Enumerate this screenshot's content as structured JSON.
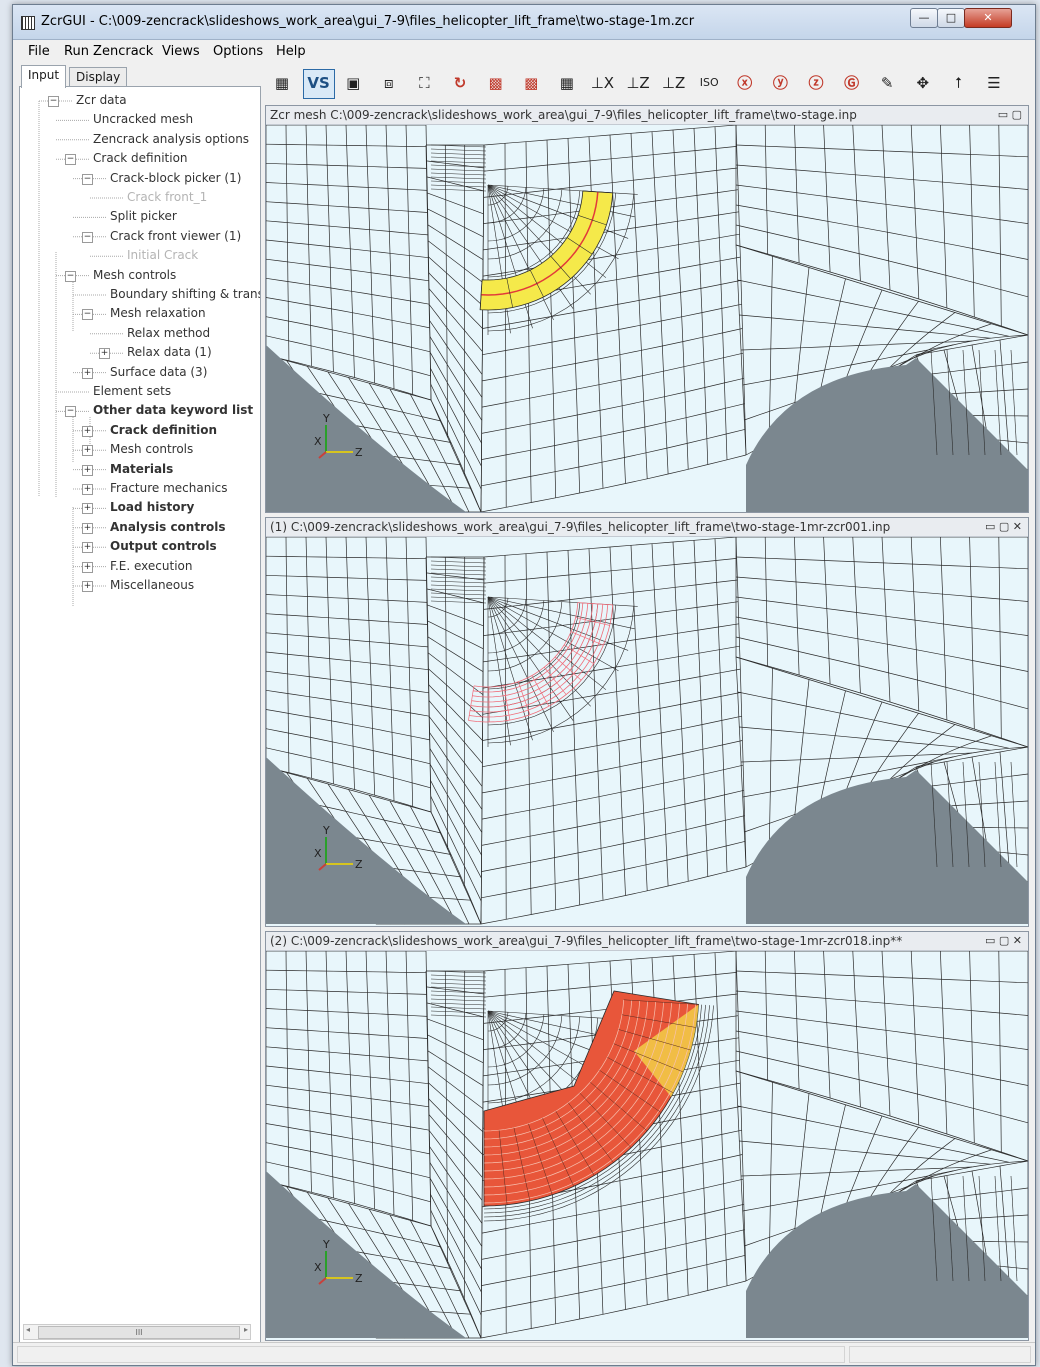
{
  "window": {
    "title": "ZcrGUI - C:\\009-zencrack\\slideshows_work_area\\gui_7-9\\files_helicopter_lift_frame\\two-stage-1m.zcr",
    "minimize_glyph": "—",
    "maximize_glyph": "□",
    "close_glyph": "✕"
  },
  "menu": [
    "File",
    "Run Zencrack",
    "Views",
    "Options",
    "Help"
  ],
  "tabs": [
    "Input",
    "Display"
  ],
  "tree": [
    {
      "label": "Zcr data",
      "level": 0,
      "expander": "minus"
    },
    {
      "label": "Uncracked mesh",
      "level": 1
    },
    {
      "label": "Zencrack analysis options",
      "level": 1
    },
    {
      "label": "Crack definition",
      "level": 1,
      "expander": "minus"
    },
    {
      "label": "Crack-block picker (1)",
      "level": 2,
      "expander": "minus"
    },
    {
      "label": "Crack front_1",
      "level": 3,
      "muted": true
    },
    {
      "label": "Split picker",
      "level": 2
    },
    {
      "label": "Crack front viewer (1)",
      "level": 2,
      "expander": "minus"
    },
    {
      "label": "Initial Crack",
      "level": 3,
      "muted": true
    },
    {
      "label": "Mesh controls",
      "level": 1,
      "expander": "minus"
    },
    {
      "label": "Boundary shifting & transfer",
      "level": 2
    },
    {
      "label": "Mesh relaxation",
      "level": 2,
      "expander": "minus"
    },
    {
      "label": "Relax method",
      "level": 3
    },
    {
      "label": "Relax data (1)",
      "level": 3,
      "expander": "plus"
    },
    {
      "label": "Surface data (3)",
      "level": 2,
      "expander": "plus"
    },
    {
      "label": "Element sets",
      "level": 1
    },
    {
      "label": "Other data keyword list",
      "level": 1,
      "expander": "minus",
      "bold": true
    },
    {
      "label": "Crack definition",
      "level": 2,
      "expander": "plus",
      "bold": true
    },
    {
      "label": "Mesh controls",
      "level": 2,
      "expander": "plus"
    },
    {
      "label": "Materials",
      "level": 2,
      "expander": "plus",
      "bold": true
    },
    {
      "label": "Fracture mechanics",
      "level": 2,
      "expander": "plus"
    },
    {
      "label": "Load history",
      "level": 2,
      "expander": "plus",
      "bold": true
    },
    {
      "label": "Analysis controls",
      "level": 2,
      "expander": "plus",
      "bold": true
    },
    {
      "label": "Output controls",
      "level": 2,
      "expander": "plus",
      "bold": true
    },
    {
      "label": "F.E. execution",
      "level": 2,
      "expander": "plus"
    },
    {
      "label": "Miscellaneous",
      "level": 2,
      "expander": "plus"
    }
  ],
  "toolbar": [
    {
      "name": "mesh-color-icon",
      "glyph": "▦"
    },
    {
      "name": "vs-toggle-button",
      "glyph": "VS"
    },
    {
      "name": "wireframe-cube-icon",
      "glyph": "▣"
    },
    {
      "name": "solid-cube-icon",
      "glyph": "⧈"
    },
    {
      "name": "fit-view-icon",
      "glyph": "⛶"
    },
    {
      "name": "rotate-icon",
      "glyph": "↻"
    },
    {
      "name": "red-grid-icon",
      "glyph": "▩"
    },
    {
      "name": "red-mesh-icon",
      "glyph": "▩"
    },
    {
      "name": "grid-icon",
      "glyph": "▦"
    },
    {
      "name": "view-x-icon",
      "glyph": "⊥X"
    },
    {
      "name": "view-z-icon",
      "glyph": "⊥Z"
    },
    {
      "name": "view-yz-icon",
      "glyph": "⊥Z"
    },
    {
      "name": "view-iso-icon",
      "glyph": "ISO"
    },
    {
      "name": "rotate-x-icon",
      "glyph": "ⓧ"
    },
    {
      "name": "rotate-y-icon",
      "glyph": "ⓨ"
    },
    {
      "name": "rotate-z-icon",
      "glyph": "ⓩ"
    },
    {
      "name": "rotate-g-icon",
      "glyph": "Ⓖ"
    },
    {
      "name": "pen-icon",
      "glyph": "✎"
    },
    {
      "name": "pan-icon",
      "glyph": "✥"
    },
    {
      "name": "up-arrow-icon",
      "glyph": "⭡"
    },
    {
      "name": "panel-layout-icon",
      "glyph": "☰"
    }
  ],
  "panels": [
    {
      "title": "Zcr mesh C:\\009-zencrack\\slideshows_work_area\\gui_7-9\\files_helicopter_lift_frame\\two-stage.inp",
      "controls": "▭ ▢",
      "crack": "yellow"
    },
    {
      "title": "(1) C:\\009-zencrack\\slideshows_work_area\\gui_7-9\\files_helicopter_lift_frame\\two-stage-1mr-zcr001.inp",
      "controls": "▭ ▢ ✕",
      "crack": "pink"
    },
    {
      "title": "(2) C:\\009-zencrack\\slideshows_work_area\\gui_7-9\\files_helicopter_lift_frame\\two-stage-1mr-zcr018.inp**",
      "controls": "▭ ▢ ✕",
      "crack": "orange"
    }
  ],
  "axes": {
    "x": "X",
    "y": "Y",
    "z": "Z"
  },
  "scroll_thumb": "III",
  "colors": {
    "mesh_bg": "#e8f6fb",
    "mesh_line": "#2b2b2b",
    "void": "#7b878f",
    "crack_yellow": "#f5e94a",
    "crack_red": "#e23a3a",
    "crack_pink": "#f06d7a",
    "crack_orange": "#e8563a"
  }
}
